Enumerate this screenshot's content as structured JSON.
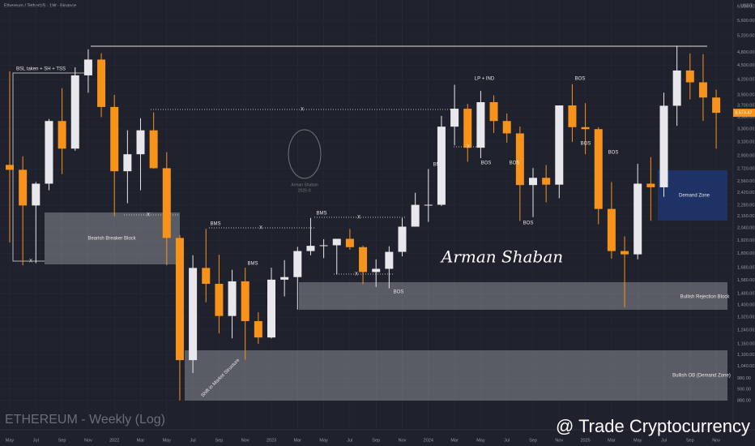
{
  "chart_data": {
    "type": "candlestick",
    "title": "Ethereum / TetherUS · 1W · Binance",
    "watermark_title": "ETHEREUM - Weekly (Log)",
    "axis_unit": "USDT",
    "log_scale": true,
    "up_color": "#e8e8ec",
    "down_color": "#f7931a",
    "categories": [
      "May",
      null,
      "Jul",
      null,
      "Sep",
      null,
      "Nov",
      null,
      "2022",
      null,
      "Mar",
      null,
      "May",
      null,
      "Jul",
      null,
      "Sep",
      null,
      "Nov",
      null,
      "2023",
      null,
      "Mar",
      null,
      "May",
      null,
      "Jul",
      null,
      "Sep",
      null,
      "Nov",
      null,
      "2024",
      null,
      "Mar",
      null,
      "May",
      null,
      "Jul",
      null,
      "Sep",
      null,
      "Nov",
      null,
      "2025",
      null,
      "Mar",
      null,
      "May",
      null,
      "Jul",
      null,
      "Sep",
      null,
      "Nov"
    ],
    "open": [
      2772,
      2707,
      2275,
      2530,
      3433,
      3001,
      4288,
      4631,
      3676,
      2688,
      2920,
      3281,
      2728,
      1942,
      1071,
      1678,
      1553,
      1328,
      1572,
      1295,
      1196,
      1585,
      1605,
      1822,
      1869,
      1874,
      1934,
      1857,
      1645,
      1671,
      1815,
      2052,
      2282,
      2283,
      3340,
      3645,
      3014,
      3763,
      3433,
      3232,
      2513,
      2603,
      2518,
      3704,
      3332,
      3300,
      2237,
      1822,
      1793,
      2530,
      2486,
      3698,
      4391,
      4145,
      3849
    ],
    "high": [
      4372,
      2891,
      2551,
      3467,
      4027,
      4460,
      4868,
      4778,
      3900,
      3282,
      3480,
      3580,
      2950,
      1970,
      1785,
      2030,
      1790,
      1663,
      1680,
      1352,
      1680,
      1743,
      1860,
      2141,
      1930,
      1930,
      2029,
      1870,
      1750,
      1865,
      2140,
      2420,
      2717,
      3520,
      4095,
      3730,
      3975,
      3890,
      3560,
      3340,
      2730,
      2770,
      3680,
      4107,
      3745,
      3330,
      2550,
      1957,
      2788,
      2880,
      3941,
      4955,
      4770,
      4755,
      4000
    ],
    "low": [
      1900,
      1700,
      1718,
      2451,
      2651,
      2970,
      3940,
      3500,
      2159,
      2300,
      2450,
      2720,
      1700,
      880,
      1006,
      1420,
      1220,
      1191,
      1073,
      1160,
      1190,
      1461,
      1370,
      1785,
      1760,
      1626,
      1835,
      1550,
      1530,
      1520,
      1776,
      2052,
      2100,
      2270,
      3050,
      2816,
      2865,
      3240,
      3090,
      2110,
      2150,
      2310,
      2357,
      3100,
      2920,
      2076,
      1755,
      1385,
      1750,
      2112,
      2373,
      3354,
      3815,
      3435,
      3000
    ],
    "close": [
      2707,
      2275,
      2530,
      3433,
      3001,
      4288,
      4631,
      3676,
      2688,
      2920,
      3281,
      2728,
      1942,
      1071,
      1678,
      1553,
      1328,
      1572,
      1295,
      1196,
      1585,
      1605,
      1822,
      1869,
      1874,
      1934,
      1857,
      1645,
      1671,
      1815,
      2052,
      2282,
      2283,
      3340,
      3645,
      3014,
      3763,
      3433,
      3232,
      2513,
      2603,
      2518,
      3704,
      3332,
      3300,
      2237,
      1822,
      1793,
      2530,
      2486,
      3698,
      4391,
      4145,
      3849,
      3573
    ],
    "last_price": {
      "value": 3573.47,
      "label": "3,573.47"
    },
    "ylim": [
      842,
      6190
    ],
    "yticks": [
      {
        "value": 880,
        "label": "880.00"
      },
      {
        "value": 930,
        "label": "930.00"
      },
      {
        "value": 980,
        "label": "980.00"
      },
      {
        "value": 1040,
        "label": "1,040.00"
      },
      {
        "value": 1100,
        "label": "1,100.00"
      },
      {
        "value": 1160,
        "label": "1,160.00"
      },
      {
        "value": 1240,
        "label": "1,240.00"
      },
      {
        "value": 1320,
        "label": "1,320.00"
      },
      {
        "value": 1400,
        "label": "1,400.00"
      },
      {
        "value": 1480,
        "label": "1,480.00"
      },
      {
        "value": 1580,
        "label": "1,580.00"
      },
      {
        "value": 1680,
        "label": "1,680.00"
      },
      {
        "value": 1800,
        "label": "1,800.00"
      },
      {
        "value": 1920,
        "label": "1,920.00"
      },
      {
        "value": 2040,
        "label": "2,040.00"
      },
      {
        "value": 2160,
        "label": "2,160.00"
      },
      {
        "value": 2280,
        "label": "2,280.00"
      },
      {
        "value": 2420,
        "label": "2,420.00"
      },
      {
        "value": 2560,
        "label": "2,560.00"
      },
      {
        "value": 2720,
        "label": "2,720.00"
      },
      {
        "value": 2900,
        "label": "2,900.00"
      },
      {
        "value": 3100,
        "label": "3,100.00"
      },
      {
        "value": 3300,
        "label": "3,300.00"
      },
      {
        "value": 3500,
        "label": "3,500.00"
      },
      {
        "value": 3700,
        "label": "3,700.00"
      },
      {
        "value": 3900,
        "label": "3,900.00"
      },
      {
        "value": 4200,
        "label": "4,200.00"
      },
      {
        "value": 4500,
        "label": "4,500.00"
      },
      {
        "value": 4800,
        "label": "4,800.00"
      },
      {
        "value": 5200,
        "label": "5,200.00"
      },
      {
        "value": 5600,
        "label": "5,600.00"
      },
      {
        "value": 6000,
        "label": "6,000.00"
      }
    ],
    "annotations": [
      "BSL taken + SH + TSS",
      "Bearish Breaker Block",
      "X",
      "X",
      "X",
      "BMS",
      "X",
      "BMS",
      "BMS",
      "X",
      "X",
      "BOS",
      "BMS",
      "LP + IND",
      "X",
      "BOS",
      "BOS",
      "BOS",
      "BOS",
      "BOS",
      "BOS",
      "Demand Zone",
      "Bullish Rejection Block",
      "Bullish OB (Demand Zone)",
      "Shift in Market Structure"
    ],
    "signature": "Arman Shaban",
    "logo_text": [
      "Arman Shaban",
      "2025 ©"
    ],
    "footer": "@ Trade Cryptocurrency"
  }
}
